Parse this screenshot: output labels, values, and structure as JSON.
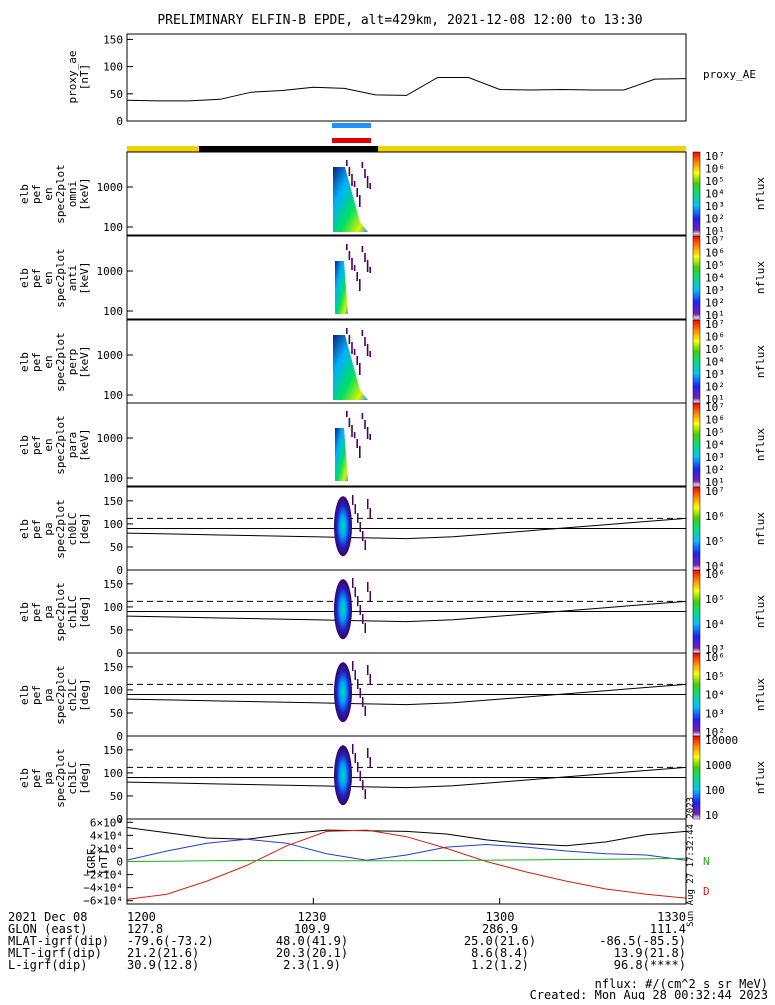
{
  "title": "PRELIMINARY ELFIN-B EPDE, alt=429km, 2021-12-08 12:00 to 13:30",
  "colors": {
    "bar_blue": "#1e90ff",
    "bar_red": "#e00000",
    "status_yellow": "#f5d000",
    "status_black": "#000000",
    "igrf_black": "#000000",
    "igrf_blue": "#2040c0",
    "igrf_red": "#d02010",
    "igrf_green": "#20b020"
  },
  "panels": {
    "proxy": {
      "ylabel_lines": [
        "proxy_ae",
        "[nT]"
      ],
      "right_label": "proxy_AE",
      "ticks": [
        "150",
        "100",
        "50",
        "0"
      ]
    },
    "spec": [
      {
        "ylabel_lines": [
          "elb",
          "pef",
          "en",
          "spec2plot",
          "omni",
          "[keV]"
        ],
        "ticks": [
          "1000",
          "100"
        ],
        "cb_label": "nflux",
        "cb_ticks": [
          "10⁷",
          "10⁶",
          "10⁵",
          "10⁴",
          "10³",
          "10²",
          "10¹"
        ]
      },
      {
        "ylabel_lines": [
          "elb",
          "pef",
          "en",
          "spec2plot",
          "anti",
          "[keV]"
        ],
        "ticks": [
          "1000",
          "100"
        ],
        "cb_label": "nflux",
        "cb_ticks": [
          "10⁷",
          "10⁶",
          "10⁵",
          "10⁴",
          "10³",
          "10²",
          "10¹"
        ]
      },
      {
        "ylabel_lines": [
          "elb",
          "pef",
          "en",
          "spec2plot",
          "perp",
          "[keV]"
        ],
        "ticks": [
          "1000",
          "100"
        ],
        "cb_label": "nflux",
        "cb_ticks": [
          "10⁷",
          "10⁶",
          "10⁵",
          "10⁴",
          "10³",
          "10²",
          "10¹"
        ]
      },
      {
        "ylabel_lines": [
          "elb",
          "pef",
          "en",
          "spec2plot",
          "para",
          "[keV]"
        ],
        "ticks": [
          "1000",
          "100"
        ],
        "cb_label": "nflux",
        "cb_ticks": [
          "10⁷",
          "10⁶",
          "10⁵",
          "10⁴",
          "10³",
          "10²",
          "10¹"
        ]
      }
    ],
    "pa": [
      {
        "ylabel_lines": [
          "elb",
          "pef",
          "pa",
          "spec2plot",
          "ch0LC",
          "[deg]"
        ],
        "ticks": [
          "150",
          "100",
          "50",
          "0"
        ],
        "cb_label": "nflux",
        "cb_ticks": [
          "10⁷",
          "10⁶",
          "10⁵",
          "10⁴"
        ]
      },
      {
        "ylabel_lines": [
          "elb",
          "pef",
          "pa",
          "spec2plot",
          "ch1LC",
          "[deg]"
        ],
        "ticks": [
          "150",
          "100",
          "50",
          "0"
        ],
        "cb_label": "nflux",
        "cb_ticks": [
          "10⁶",
          "10⁵",
          "10⁴",
          "10³"
        ]
      },
      {
        "ylabel_lines": [
          "elb",
          "pef",
          "pa",
          "spec2plot",
          "ch2LC",
          "[deg]"
        ],
        "ticks": [
          "150",
          "100",
          "50",
          "0"
        ],
        "cb_label": "nflux",
        "cb_ticks": [
          "10⁶",
          "10⁵",
          "10⁴",
          "10³",
          "10²"
        ]
      },
      {
        "ylabel_lines": [
          "elb",
          "pef",
          "pa",
          "spec2plot",
          "ch3LC",
          "[deg]"
        ],
        "ticks": [
          "150",
          "100",
          "50",
          "0"
        ],
        "cb_label": "nflux",
        "cb_ticks": [
          "10000",
          "1000",
          "100",
          "10"
        ]
      }
    ],
    "igrf": {
      "ylabel_lines": [
        "IGRF",
        "[nT]"
      ],
      "ticks": [
        "6×10⁴",
        "4×10⁴",
        "2×10⁴",
        "0",
        "−2×10⁴",
        "−4×10⁴",
        "−6×10⁴"
      ],
      "right_labels": [
        "N",
        "D"
      ],
      "side_stamp": "Sun Aug 27 17:32:44 2023"
    }
  },
  "chart_data": [
    {
      "type": "line",
      "name": "proxy_AE",
      "x": [
        "12:00",
        "12:05",
        "12:10",
        "12:15",
        "12:20",
        "12:25",
        "12:30",
        "12:35",
        "12:40",
        "12:45",
        "12:50",
        "12:55",
        "13:00",
        "13:05",
        "13:10",
        "13:15",
        "13:20",
        "13:25",
        "13:30"
      ],
      "y": [
        38,
        37,
        37,
        40,
        53,
        56,
        62,
        60,
        48,
        47,
        80,
        80,
        58,
        57,
        58,
        57,
        57,
        77,
        78
      ],
      "ylabel": "proxy_ae [nT]",
      "ylim": [
        0,
        160
      ]
    },
    {
      "type": "heatmap",
      "name": "spec2plot omni/anti/perp/para",
      "yscale": "log",
      "ylabel": "[keV]",
      "ylim_keV": [
        60,
        6000
      ],
      "x_range_utc": [
        "12:33",
        "12:38"
      ],
      "cb_label": "nflux",
      "cb_range": [
        "10¹",
        "10⁷"
      ]
    },
    {
      "type": "heatmap",
      "name": "spec2plot ch0LC-ch3LC",
      "ylabel": "[deg]",
      "ylim": [
        0,
        180
      ],
      "x_range_utc": [
        "12:33",
        "12:38"
      ],
      "dashed_line_deg": 112,
      "solid_line_deg": 90,
      "lc_curve_deg": [
        80,
        78,
        76,
        74,
        72,
        70,
        68,
        72,
        80,
        88,
        96,
        104,
        112
      ]
    },
    {
      "type": "line",
      "name": "IGRF",
      "ylabel": "IGRF [nT]",
      "ylim": [
        -65000,
        65000
      ],
      "series": [
        {
          "name": "",
          "color": "black",
          "y": [
            52000,
            44000,
            36000,
            34000,
            42000,
            48000,
            47000,
            46000,
            42000,
            33000,
            27000,
            24000,
            30000,
            41000,
            46000
          ]
        },
        {
          "name": "",
          "color": "blue",
          "y": [
            2000,
            16000,
            28000,
            34000,
            28000,
            12000,
            2000,
            10000,
            22000,
            26000,
            22000,
            16000,
            12000,
            10000,
            2000
          ]
        },
        {
          "name": "D",
          "color": "red",
          "y": [
            -58000,
            -50000,
            -30000,
            -6000,
            24000,
            46000,
            48000,
            38000,
            20000,
            0,
            -16000,
            -30000,
            -42000,
            -50000,
            -56000
          ]
        },
        {
          "name": "N",
          "color": "green",
          "y": [
            0,
            500,
            1000,
            1500,
            1500,
            1000,
            1000,
            1000,
            1500,
            2000,
            2500,
            3000,
            3500,
            4000,
            5000
          ]
        }
      ]
    }
  ],
  "footer": {
    "rows": [
      {
        "label": "2021 Dec 08",
        "values": [
          "1200",
          "1230",
          "1300",
          "1330"
        ]
      },
      {
        "label": "GLON (east)",
        "values": [
          "127.8",
          "109.9",
          "286.9",
          "111.4"
        ]
      },
      {
        "label": "MLAT-igrf(dip)",
        "values": [
          "-79.6(-73.2)",
          "48.0(41.9)",
          "25.0(21.6)",
          "-86.5(-85.5)"
        ]
      },
      {
        "label": "MLT-igrf(dip)",
        "values": [
          "21.2(21.6)",
          "20.3(20.1)",
          "8.6(8.4)",
          "13.9(21.8)"
        ]
      },
      {
        "label": "L-igrf(dip)",
        "values": [
          "30.9(12.8)",
          "2.3(1.9)",
          "1.2(1.2)",
          "96.8(****)"
        ]
      }
    ],
    "units": "nflux: #/(cm^2 s sr MeV)",
    "created": "Created: Mon Aug 28 00:32:44 2023"
  }
}
